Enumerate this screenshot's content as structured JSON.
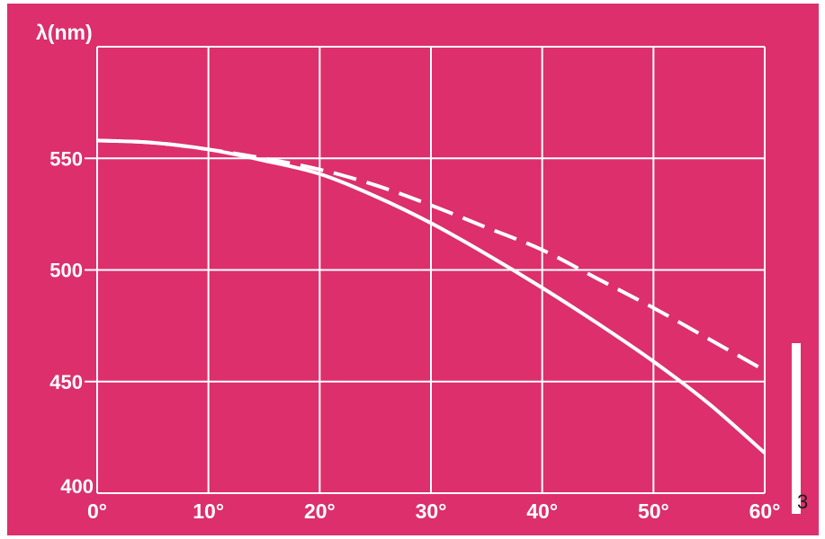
{
  "chart_data": {
    "type": "line",
    "title": "",
    "xlabel": "",
    "ylabel": "λ(nm)",
    "xlim": [
      0,
      60
    ],
    "ylim": [
      400,
      600
    ],
    "x_ticks": [
      {
        "value": 0,
        "label": "0°"
      },
      {
        "value": 10,
        "label": "10°"
      },
      {
        "value": 20,
        "label": "20°"
      },
      {
        "value": 30,
        "label": "30°"
      },
      {
        "value": 40,
        "label": "40°"
      },
      {
        "value": 50,
        "label": "50°"
      },
      {
        "value": 60,
        "label": "60°"
      }
    ],
    "y_ticks": [
      {
        "value": 400,
        "label": "400"
      },
      {
        "value": 450,
        "label": "450"
      },
      {
        "value": 500,
        "label": "500"
      },
      {
        "value": 550,
        "label": "550"
      }
    ],
    "grid": true,
    "legend": "none",
    "series": [
      {
        "style": "solid",
        "x": [
          0,
          5,
          10,
          15,
          20,
          25,
          30,
          35,
          40,
          45,
          50,
          55,
          60
        ],
        "y": [
          558,
          557,
          554,
          549,
          543,
          533,
          521,
          507,
          492,
          476,
          459,
          440,
          418
        ]
      },
      {
        "style": "dashed",
        "x": [
          0,
          5,
          10,
          15,
          20,
          25,
          30,
          35,
          40,
          45,
          50,
          55,
          60
        ],
        "y": [
          558,
          557,
          554,
          550,
          545,
          538,
          529,
          519,
          509,
          496,
          483,
          469,
          455
        ]
      }
    ],
    "colors": {
      "background": "#dc2f6b",
      "foreground": "#ffffff"
    }
  },
  "side_label": "3"
}
